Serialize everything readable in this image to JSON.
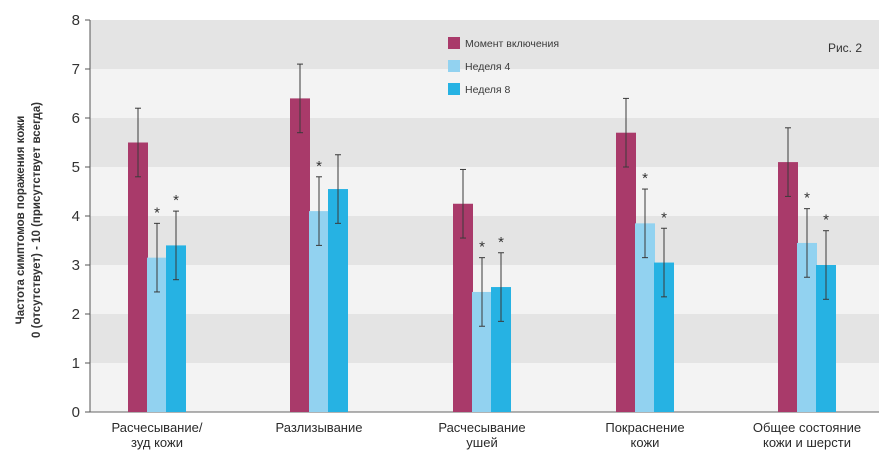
{
  "chart_data": {
    "type": "bar",
    "figure_label": "Рис. 2",
    "ylabel_lines": [
      "Частота симптомов поражения кожи",
      "0 (отсутствует) - 10 (присутствует всегда)"
    ],
    "ylim": [
      0,
      8
    ],
    "yticks": [
      0,
      1,
      2,
      3,
      4,
      5,
      6,
      7,
      8
    ],
    "grid": "alternating horizontal bands",
    "legend_position": "top-center",
    "categories": [
      [
        "Расчесывание/",
        "зуд кожи"
      ],
      [
        "Разлизывание"
      ],
      [
        "Расчесывание",
        "ушей"
      ],
      [
        "Покраснение",
        "кожи"
      ],
      [
        "Общее состояние",
        "кожи и шерсти"
      ]
    ],
    "series": [
      {
        "name": "Момент включения",
        "color": "#a93a6a",
        "values": [
          5.5,
          6.4,
          4.25,
          5.7,
          5.1
        ],
        "errors": [
          0.7,
          0.7,
          0.7,
          0.7,
          0.7
        ],
        "significant": [
          false,
          false,
          false,
          false,
          false
        ]
      },
      {
        "name": "Неделя 4",
        "color": "#92d2f0",
        "values": [
          3.15,
          4.1,
          2.45,
          3.85,
          3.45
        ],
        "errors": [
          0.7,
          0.7,
          0.7,
          0.7,
          0.7
        ],
        "significant": [
          true,
          true,
          true,
          true,
          true
        ]
      },
      {
        "name": "Неделя 8",
        "color": "#26b2e3",
        "values": [
          3.4,
          4.55,
          2.55,
          3.05,
          3.0
        ],
        "errors": [
          0.7,
          0.7,
          0.7,
          0.7,
          0.7
        ],
        "significant": [
          true,
          false,
          true,
          true,
          true
        ]
      }
    ],
    "significance_marker": "*"
  }
}
